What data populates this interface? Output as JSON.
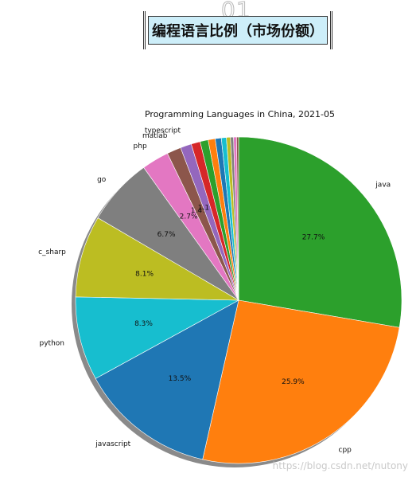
{
  "header": {
    "number": "01",
    "title": "编程语言比例（市场份额）"
  },
  "chart_data": {
    "type": "pie",
    "title": "Programming Languages in China, 2021-05",
    "shadow": true,
    "start_angle_deg": 90,
    "direction": "clockwise",
    "slices": [
      {
        "label": "java",
        "value": 27.7,
        "pct_label": "27.7%",
        "color": "#2ca02c"
      },
      {
        "label": "cpp",
        "value": 25.9,
        "pct_label": "25.9%",
        "color": "#ff7f0e"
      },
      {
        "label": "javascript",
        "value": 13.5,
        "pct_label": "13.5%",
        "color": "#1f77b4"
      },
      {
        "label": "python",
        "value": 8.3,
        "pct_label": "8.3%",
        "color": "#17becf"
      },
      {
        "label": "c_sharp",
        "value": 8.1,
        "pct_label": "8.1%",
        "color": "#bcbd22"
      },
      {
        "label": "go",
        "value": 6.7,
        "pct_label": "6.7%",
        "color": "#7f7f7f"
      },
      {
        "label": "php",
        "value": 2.7,
        "pct_label": "2.7%",
        "color": "#e377c2"
      },
      {
        "label": "matlab",
        "value": 1.4,
        "pct_label": "1.4%",
        "color": "#8c564b"
      },
      {
        "label": "typescript",
        "value": 1.1,
        "pct_label": "1.1%",
        "color": "#9467bd"
      },
      {
        "label": "",
        "value": 0.9,
        "pct_label": "",
        "color": "#d62728"
      },
      {
        "label": "",
        "value": 0.8,
        "pct_label": "",
        "color": "#2ca02c"
      },
      {
        "label": "",
        "value": 0.7,
        "pct_label": "",
        "color": "#ff7f0e"
      },
      {
        "label": "",
        "value": 0.6,
        "pct_label": "",
        "color": "#1f77b4"
      },
      {
        "label": "",
        "value": 0.5,
        "pct_label": "",
        "color": "#17becf"
      },
      {
        "label": "",
        "value": 0.4,
        "pct_label": "",
        "color": "#bcbd22"
      },
      {
        "label": "",
        "value": 0.3,
        "pct_label": "",
        "color": "#7f7f7f"
      },
      {
        "label": "",
        "value": 0.3,
        "pct_label": "",
        "color": "#e377c2"
      },
      {
        "label": "",
        "value": 0.2,
        "pct_label": "",
        "color": "#8c564b"
      }
    ]
  },
  "watermark": "https://blog.csdn.net/nutony"
}
